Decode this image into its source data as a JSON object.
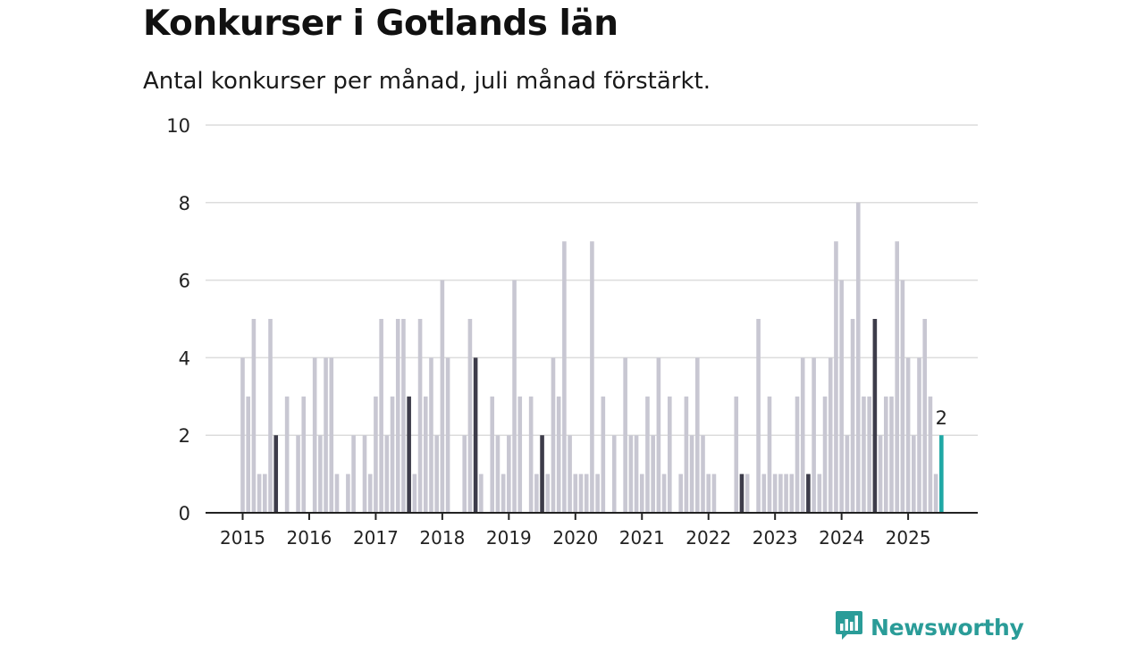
{
  "header": {
    "title": "Konkurser i Gotlands län",
    "subtitle": "Antal konkurser per månad, juli månad förstärkt."
  },
  "brand": {
    "name": "Newsworthy",
    "icon": "bar-chart-speech-bubble-icon"
  },
  "colors": {
    "bar": "#c8c7d2",
    "highlight": "#3d3c4a",
    "latest": "#1fa8a5",
    "grid": "#dcdcdc",
    "axis": "#222222",
    "brand": "#2a9c98"
  },
  "chart_data": {
    "type": "bar",
    "title": "Konkurser i Gotlands län",
    "subtitle": "Antal konkurser per månad, juli månad förstärkt.",
    "xlabel": "",
    "ylabel": "",
    "ylim": [
      0,
      10
    ],
    "yticks": [
      0,
      2,
      4,
      6,
      8,
      10
    ],
    "xticks": [
      "2015",
      "2016",
      "2017",
      "2018",
      "2019",
      "2020",
      "2021",
      "2022",
      "2023",
      "2024",
      "2025"
    ],
    "grid": true,
    "series": [
      {
        "start": "2015-01",
        "end": "2025-07",
        "highlight_month": "July",
        "values": [
          4,
          3,
          5,
          1,
          1,
          5,
          2,
          0,
          3,
          0,
          2,
          3,
          0,
          4,
          2,
          4,
          4,
          1,
          0,
          1,
          2,
          0,
          2,
          1,
          3,
          5,
          2,
          3,
          5,
          5,
          3,
          1,
          5,
          3,
          4,
          2,
          6,
          4,
          0,
          0,
          2,
          5,
          4,
          1,
          0,
          3,
          2,
          1,
          2,
          6,
          3,
          0,
          3,
          1,
          2,
          1,
          4,
          3,
          7,
          2,
          1,
          1,
          1,
          7,
          1,
          3,
          0,
          2,
          0,
          4,
          2,
          2,
          1,
          3,
          2,
          4,
          1,
          3,
          0,
          1,
          3,
          2,
          4,
          2,
          1,
          1,
          0,
          0,
          0,
          3,
          1,
          1,
          0,
          5,
          1,
          3,
          1,
          1,
          1,
          1,
          3,
          4,
          1,
          4,
          1,
          3,
          4,
          7,
          6,
          2,
          5,
          8,
          3,
          3,
          5,
          2,
          3,
          3,
          7,
          6,
          4,
          2,
          4,
          5,
          3,
          1,
          2
        ]
      }
    ],
    "annotations": [
      {
        "label": "2",
        "month": "2025-07"
      }
    ]
  }
}
